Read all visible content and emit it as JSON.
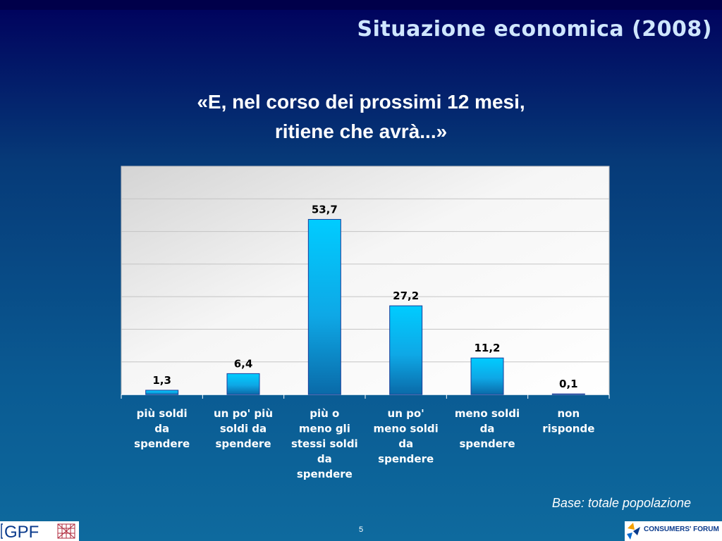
{
  "slide": {
    "title": "Situazione economica (2008)",
    "question_line1": "«E, nel corso dei prossimi 12 mesi,",
    "question_line2": "ritiene che avrà...»",
    "base_note": "Base: totale popolazione",
    "page_number": "5"
  },
  "logos": {
    "left_text": "GPF",
    "right_text": "CONSUMERS' FORUM"
  },
  "chart_data": {
    "type": "bar",
    "categories": [
      [
        "più soldi",
        "da",
        "spendere"
      ],
      [
        "un po' più",
        "soldi da",
        "spendere"
      ],
      [
        "più o",
        "meno gli",
        "stessi soldi",
        "da",
        "spendere"
      ],
      [
        "un po'",
        "meno soldi",
        "da",
        "spendere"
      ],
      [
        "meno soldi",
        "da",
        "spendere"
      ],
      [
        "non",
        "risponde"
      ]
    ],
    "values": [
      1.3,
      6.4,
      53.7,
      27.2,
      11.2,
      0.1
    ],
    "data_labels": [
      "1,3",
      "6,4",
      "53,7",
      "27,2",
      "11,2",
      "0,1"
    ],
    "ylim": [
      0,
      70
    ],
    "gridlines": [
      10,
      20,
      30,
      40,
      50,
      60
    ],
    "grid": true,
    "bar_color": "#00ccff",
    "bar_color_dark": "#0a6aa8",
    "plot_background": "#e6e6e6"
  }
}
